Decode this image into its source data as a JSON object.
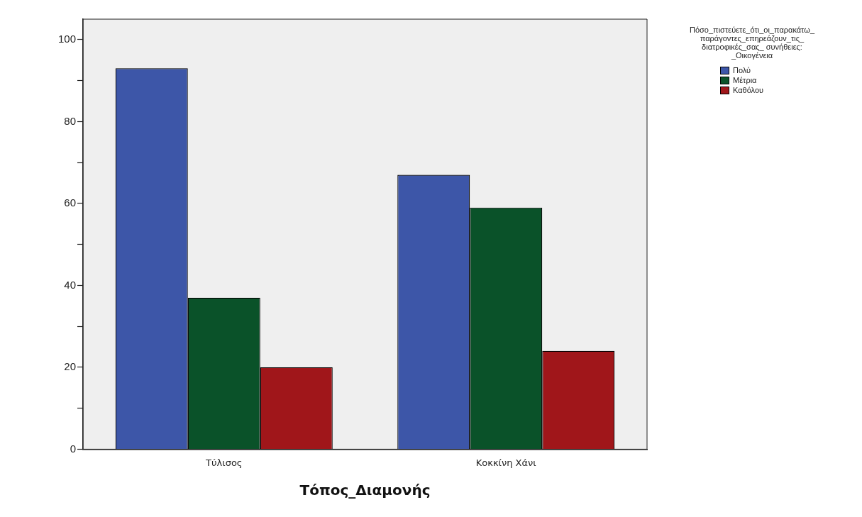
{
  "chart_data": {
    "type": "bar",
    "xlabel": "Τόπος_Διαμονής",
    "legend_title": "Πόσο_πιστεύετε_ότι_οι_παρακάτω_ παράγοντες_επηρεάζουν_τις_ διατροφικές_σας_ συνήθειες: _Οικογένεια",
    "categories": [
      "Τύλισος",
      "Κοκκίνη Χάνι"
    ],
    "series": [
      {
        "name": "Πολύ",
        "color": "#3d56a8",
        "values": [
          93,
          67
        ]
      },
      {
        "name": "Μέτρια",
        "color": "#0a5229",
        "values": [
          37,
          59
        ]
      },
      {
        "name": "Καθόλου",
        "color": "#a0161a",
        "values": [
          20,
          24
        ]
      }
    ],
    "ylim": [
      0,
      105
    ],
    "yticks": [
      0,
      {
        "value": 10,
        "label": null
      },
      20,
      {
        "value": 30,
        "label": null
      },
      40,
      {
        "value": 50,
        "label": null
      },
      60,
      {
        "value": 70,
        "label": null
      },
      80,
      {
        "value": 90,
        "label": null
      },
      100
    ],
    "grid": false,
    "legend": "right"
  }
}
